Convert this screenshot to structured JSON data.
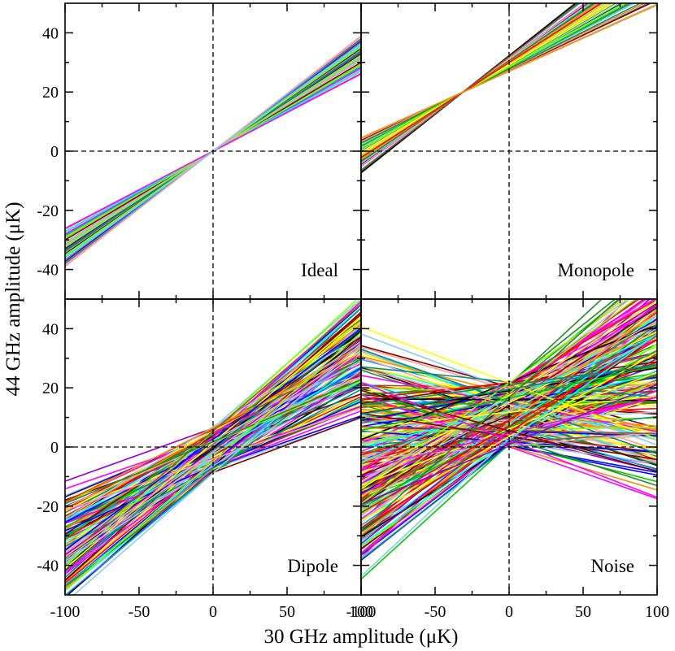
{
  "chart_data": {
    "type": "line",
    "layout": "2x2 panel grid with shared axes",
    "xlabel": "30 GHz amplitude (μK)",
    "ylabel": "44 GHz amplitude (μK)",
    "xlim": [
      -100,
      100
    ],
    "ylim": [
      -50,
      50
    ],
    "x_ticks": [
      -100,
      -50,
      0,
      50,
      100
    ],
    "y_ticks": [
      -40,
      -20,
      0,
      20,
      40
    ],
    "reference_lines": {
      "x": 0,
      "y": 0,
      "style": "dashed"
    },
    "panels": [
      {
        "label": "Ideal",
        "position": "top-left",
        "n_lines": 60,
        "spread_slope": [
          0.26,
          0.39
        ],
        "intercept_range": [
          0,
          0
        ],
        "note": "all lines pass through origin"
      },
      {
        "label": "Monopole",
        "position": "top-right",
        "n_lines": 60,
        "pivot": [
          -31,
          20
        ],
        "spread_slope": [
          0.22,
          0.4
        ],
        "note": "all lines pass through common point offset from origin"
      },
      {
        "label": "Dipole",
        "position": "bottom-left",
        "n_lines": 130,
        "spread_slope": [
          0.17,
          0.46
        ],
        "intercept_range": [
          -9,
          7
        ]
      },
      {
        "label": "Noise",
        "position": "bottom-right",
        "n_lines": 230,
        "spread_slope": [
          -0.21,
          0.47
        ],
        "intercept_range": [
          0,
          22
        ]
      }
    ],
    "palette": [
      "#000000",
      "#ff0000",
      "#00c800",
      "#0000ff",
      "#00ffff",
      "#ff00ff",
      "#ffff00",
      "#bbbbbb",
      "#ff9d9d",
      "#9400d3",
      "#00a5ff",
      "#ff8c00",
      "#008b8b",
      "#a0522d",
      "#7fff00",
      "#800000",
      "#228b22",
      "#87ceeb"
    ]
  }
}
